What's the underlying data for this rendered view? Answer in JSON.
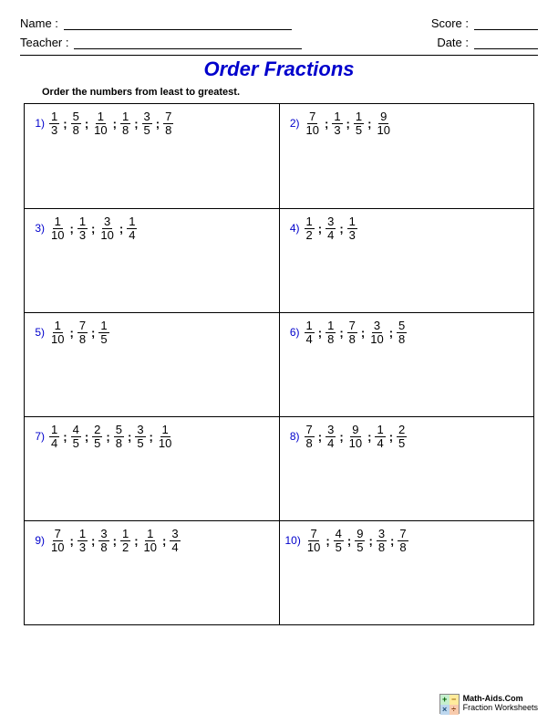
{
  "header": {
    "name_label": "Name :",
    "teacher_label": "Teacher :",
    "score_label": "Score :",
    "date_label": "Date :"
  },
  "title": {
    "text": "Order Fractions",
    "color": "#0000cc"
  },
  "instructions": "Order the numbers from least to greatest.",
  "separator": " ; ",
  "problems": [
    {
      "num": "1)",
      "fractions": [
        [
          1,
          3
        ],
        [
          5,
          8
        ],
        [
          1,
          10
        ],
        [
          1,
          8
        ],
        [
          3,
          5
        ],
        [
          7,
          8
        ]
      ]
    },
    {
      "num": "2)",
      "fractions": [
        [
          7,
          10
        ],
        [
          1,
          3
        ],
        [
          1,
          5
        ],
        [
          9,
          10
        ]
      ]
    },
    {
      "num": "3)",
      "fractions": [
        [
          1,
          10
        ],
        [
          1,
          3
        ],
        [
          3,
          10
        ],
        [
          1,
          4
        ]
      ]
    },
    {
      "num": "4)",
      "fractions": [
        [
          1,
          2
        ],
        [
          3,
          4
        ],
        [
          1,
          3
        ]
      ]
    },
    {
      "num": "5)",
      "fractions": [
        [
          1,
          10
        ],
        [
          7,
          8
        ],
        [
          1,
          5
        ]
      ]
    },
    {
      "num": "6)",
      "fractions": [
        [
          1,
          4
        ],
        [
          1,
          8
        ],
        [
          7,
          8
        ],
        [
          3,
          10
        ],
        [
          5,
          8
        ]
      ]
    },
    {
      "num": "7)",
      "fractions": [
        [
          1,
          4
        ],
        [
          4,
          5
        ],
        [
          2,
          5
        ],
        [
          5,
          8
        ],
        [
          3,
          5
        ],
        [
          1,
          10
        ]
      ]
    },
    {
      "num": "8)",
      "fractions": [
        [
          7,
          8
        ],
        [
          3,
          4
        ],
        [
          9,
          10
        ],
        [
          1,
          4
        ],
        [
          2,
          5
        ]
      ]
    },
    {
      "num": "9)",
      "fractions": [
        [
          7,
          10
        ],
        [
          1,
          3
        ],
        [
          3,
          8
        ],
        [
          1,
          2
        ],
        [
          1,
          10
        ],
        [
          3,
          4
        ]
      ]
    },
    {
      "num": "10)",
      "fractions": [
        [
          7,
          10
        ],
        [
          4,
          5
        ],
        [
          9,
          5
        ],
        [
          3,
          8
        ],
        [
          7,
          8
        ]
      ]
    }
  ],
  "layout": {
    "columns": 2,
    "rows": 5
  },
  "footer": {
    "line1": "Math-Aids.Com",
    "line2": "Fraction Worksheets"
  },
  "colors": {
    "problem_number": "#0000cc",
    "text": "#000000",
    "background": "#ffffff",
    "border": "#000000"
  }
}
